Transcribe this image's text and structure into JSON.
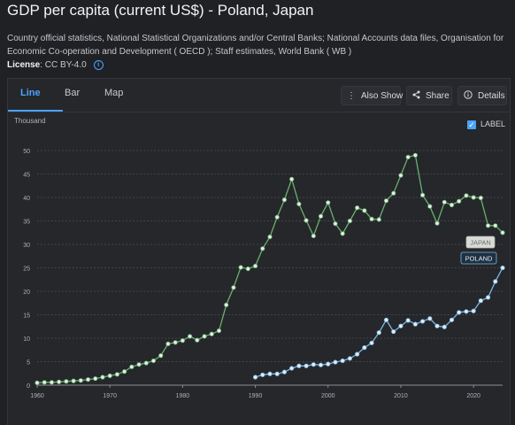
{
  "title": "GDP per capita (current US$) - Poland, Japan",
  "description": "Country official statistics, National Statistical Organizations and/or Central Banks; National Accounts data files, Organisation for Economic Co-operation and Development ( OECD ); Staff estimates, World Bank ( WB )",
  "license": {
    "label": "License",
    "value": " : CC BY-4.0",
    "icon": "info-icon"
  },
  "tabs": [
    "Line",
    "Bar",
    "Map"
  ],
  "toolbar": {
    "also_show": "Also Show",
    "share": "Share",
    "details": "Details"
  },
  "legend": {
    "label": "LABEL",
    "checked": true
  },
  "chart_data": {
    "type": "line",
    "ylabel": "Thousand",
    "ylim": [
      0,
      50
    ],
    "yticks": [
      0,
      5,
      10,
      15,
      20,
      25,
      30,
      35,
      40,
      45,
      50
    ],
    "xlim": [
      1960,
      2024
    ],
    "xticks": [
      1960,
      1970,
      1980,
      1990,
      2000,
      2010,
      2020
    ],
    "grid": true,
    "series": [
      {
        "name": "JAPAN",
        "color": "#6ab06f",
        "x": [
          1960,
          1961,
          1962,
          1963,
          1964,
          1965,
          1966,
          1967,
          1968,
          1969,
          1970,
          1971,
          1972,
          1973,
          1974,
          1975,
          1976,
          1977,
          1978,
          1979,
          1980,
          1981,
          1982,
          1983,
          1984,
          1985,
          1986,
          1987,
          1988,
          1989,
          1990,
          1991,
          1992,
          1993,
          1994,
          1995,
          1996,
          1997,
          1998,
          1999,
          2000,
          2001,
          2002,
          2003,
          2004,
          2005,
          2006,
          2007,
          2008,
          2009,
          2010,
          2011,
          2012,
          2013,
          2014,
          2015,
          2016,
          2017,
          2018,
          2019,
          2020,
          2021,
          2022,
          2023,
          2024
        ],
        "y": [
          0.5,
          0.6,
          0.6,
          0.7,
          0.8,
          0.9,
          1.0,
          1.2,
          1.4,
          1.7,
          2.0,
          2.3,
          2.9,
          3.9,
          4.4,
          4.7,
          5.2,
          6.3,
          8.8,
          9.1,
          9.5,
          10.4,
          9.6,
          10.4,
          10.9,
          11.6,
          17.1,
          20.8,
          25.1,
          24.8,
          25.4,
          29.1,
          31.6,
          35.8,
          39.5,
          43.9,
          38.6,
          35.1,
          31.8,
          36.0,
          38.9,
          34.4,
          32.3,
          35.0,
          37.8,
          37.2,
          35.4,
          35.3,
          39.3,
          40.9,
          44.7,
          48.6,
          49.0,
          40.5,
          38.1,
          34.5,
          39.0,
          38.4,
          39.2,
          40.4,
          40.0,
          39.9,
          34.0,
          34.0,
          32.5
        ]
      },
      {
        "name": "POLAND",
        "color": "#7ab8e8",
        "x": [
          1990,
          1991,
          1992,
          1993,
          1994,
          1995,
          1996,
          1997,
          1998,
          1999,
          2000,
          2001,
          2002,
          2003,
          2004,
          2005,
          2006,
          2007,
          2008,
          2009,
          2010,
          2011,
          2012,
          2013,
          2014,
          2015,
          2016,
          2017,
          2018,
          2019,
          2020,
          2021,
          2022,
          2023,
          2024
        ],
        "y": [
          1.7,
          2.2,
          2.4,
          2.4,
          2.8,
          3.6,
          4.1,
          4.1,
          4.4,
          4.3,
          4.5,
          4.9,
          5.2,
          5.7,
          6.6,
          8.0,
          9.0,
          11.2,
          13.9,
          11.4,
          12.6,
          13.8,
          13.0,
          13.6,
          14.2,
          12.6,
          12.4,
          13.9,
          15.5,
          15.7,
          15.8,
          18.0,
          18.7,
          22.1,
          25.0
        ]
      }
    ]
  }
}
